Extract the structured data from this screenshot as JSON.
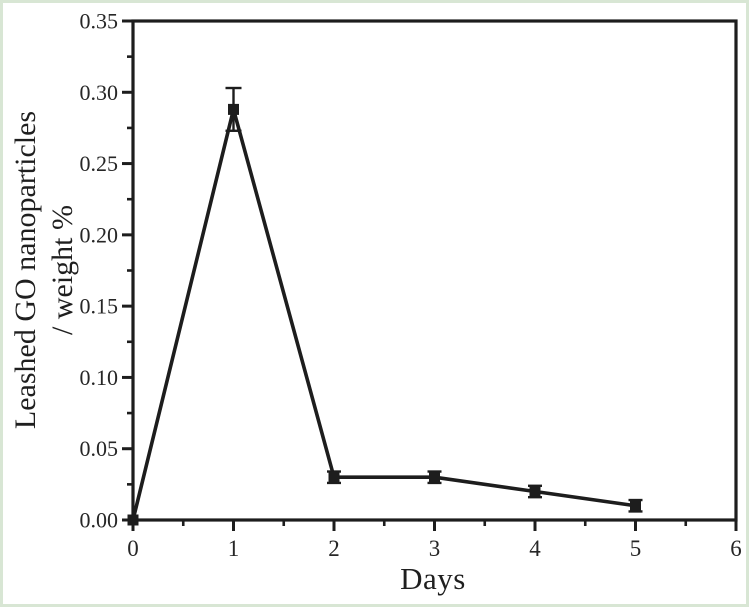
{
  "figure": {
    "background": "#ffffff",
    "frame_border_color": "#d8e6d4",
    "axis_color": "#1d1d1d",
    "text_color": "#262626"
  },
  "chart_data": {
    "type": "line",
    "series_name": "Leashed GO nanoparticles",
    "x": [
      0,
      1,
      2,
      3,
      4,
      5
    ],
    "values": [
      0.0,
      0.288,
      0.03,
      0.03,
      0.02,
      0.01
    ],
    "error_bars": [
      0,
      0.015,
      0.004,
      0.004,
      0.004,
      0.004
    ],
    "title": "",
    "xlabel": "Days",
    "ylabel_line1": "Leashed GO nanoparticles",
    "ylabel_line2": "/ weight %",
    "xlim": [
      0,
      6
    ],
    "ylim": [
      0,
      0.35
    ],
    "x_major_ticks": [
      0,
      1,
      2,
      3,
      4,
      5,
      6
    ],
    "x_tick_labels": [
      "0",
      "1",
      "2",
      "3",
      "4",
      "5",
      "6"
    ],
    "x_minor_step": 0.5,
    "y_major_ticks": [
      0.0,
      0.05,
      0.1,
      0.15,
      0.2,
      0.25,
      0.3,
      0.35
    ],
    "y_tick_labels": [
      "0.00",
      "0.05",
      "0.10",
      "0.15",
      "0.20",
      "0.25",
      "0.30",
      "0.35"
    ],
    "y_minor_step": 0.025,
    "marker": "filled-square",
    "line_color": "#1d1d1d",
    "marker_color": "#1d1d1d",
    "grid": false,
    "legend": "none"
  }
}
